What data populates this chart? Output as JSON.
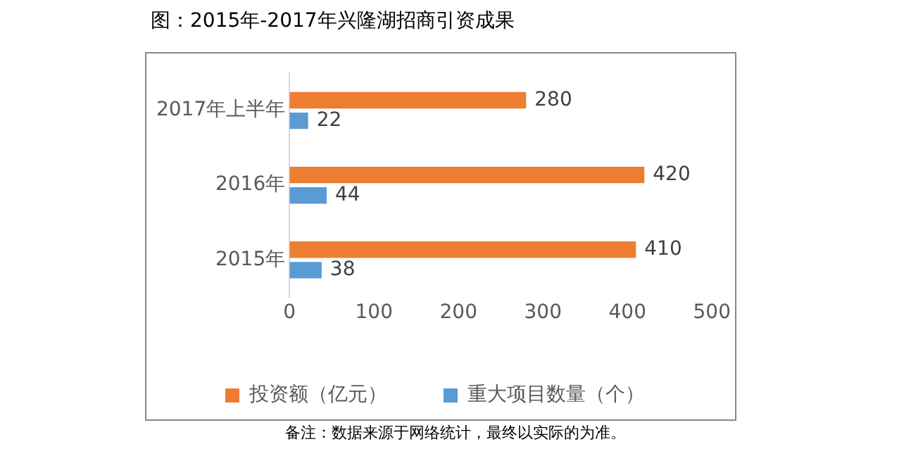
{
  "chart_data": {
    "type": "bar",
    "orientation": "horizontal",
    "title": "图：2015年-2017年兴隆湖招商引资成果",
    "categories": [
      "2017年上半年",
      "2016年",
      "2015年"
    ],
    "series": [
      {
        "name": "投资额（亿元）",
        "color": "#ed7d31",
        "values": [
          280,
          420,
          410
        ]
      },
      {
        "name": "重大项目数量（个）",
        "color": "#5b9bd5",
        "values": [
          22,
          44,
          38
        ]
      }
    ],
    "xlim": [
      0,
      500
    ],
    "xticks": [
      0,
      100,
      200,
      300,
      400,
      500
    ],
    "grid": false,
    "legend": "bottom",
    "data_labels": true,
    "annotations": [
      "备注：数据来源于网络统计，最终以实际的为准。"
    ]
  }
}
